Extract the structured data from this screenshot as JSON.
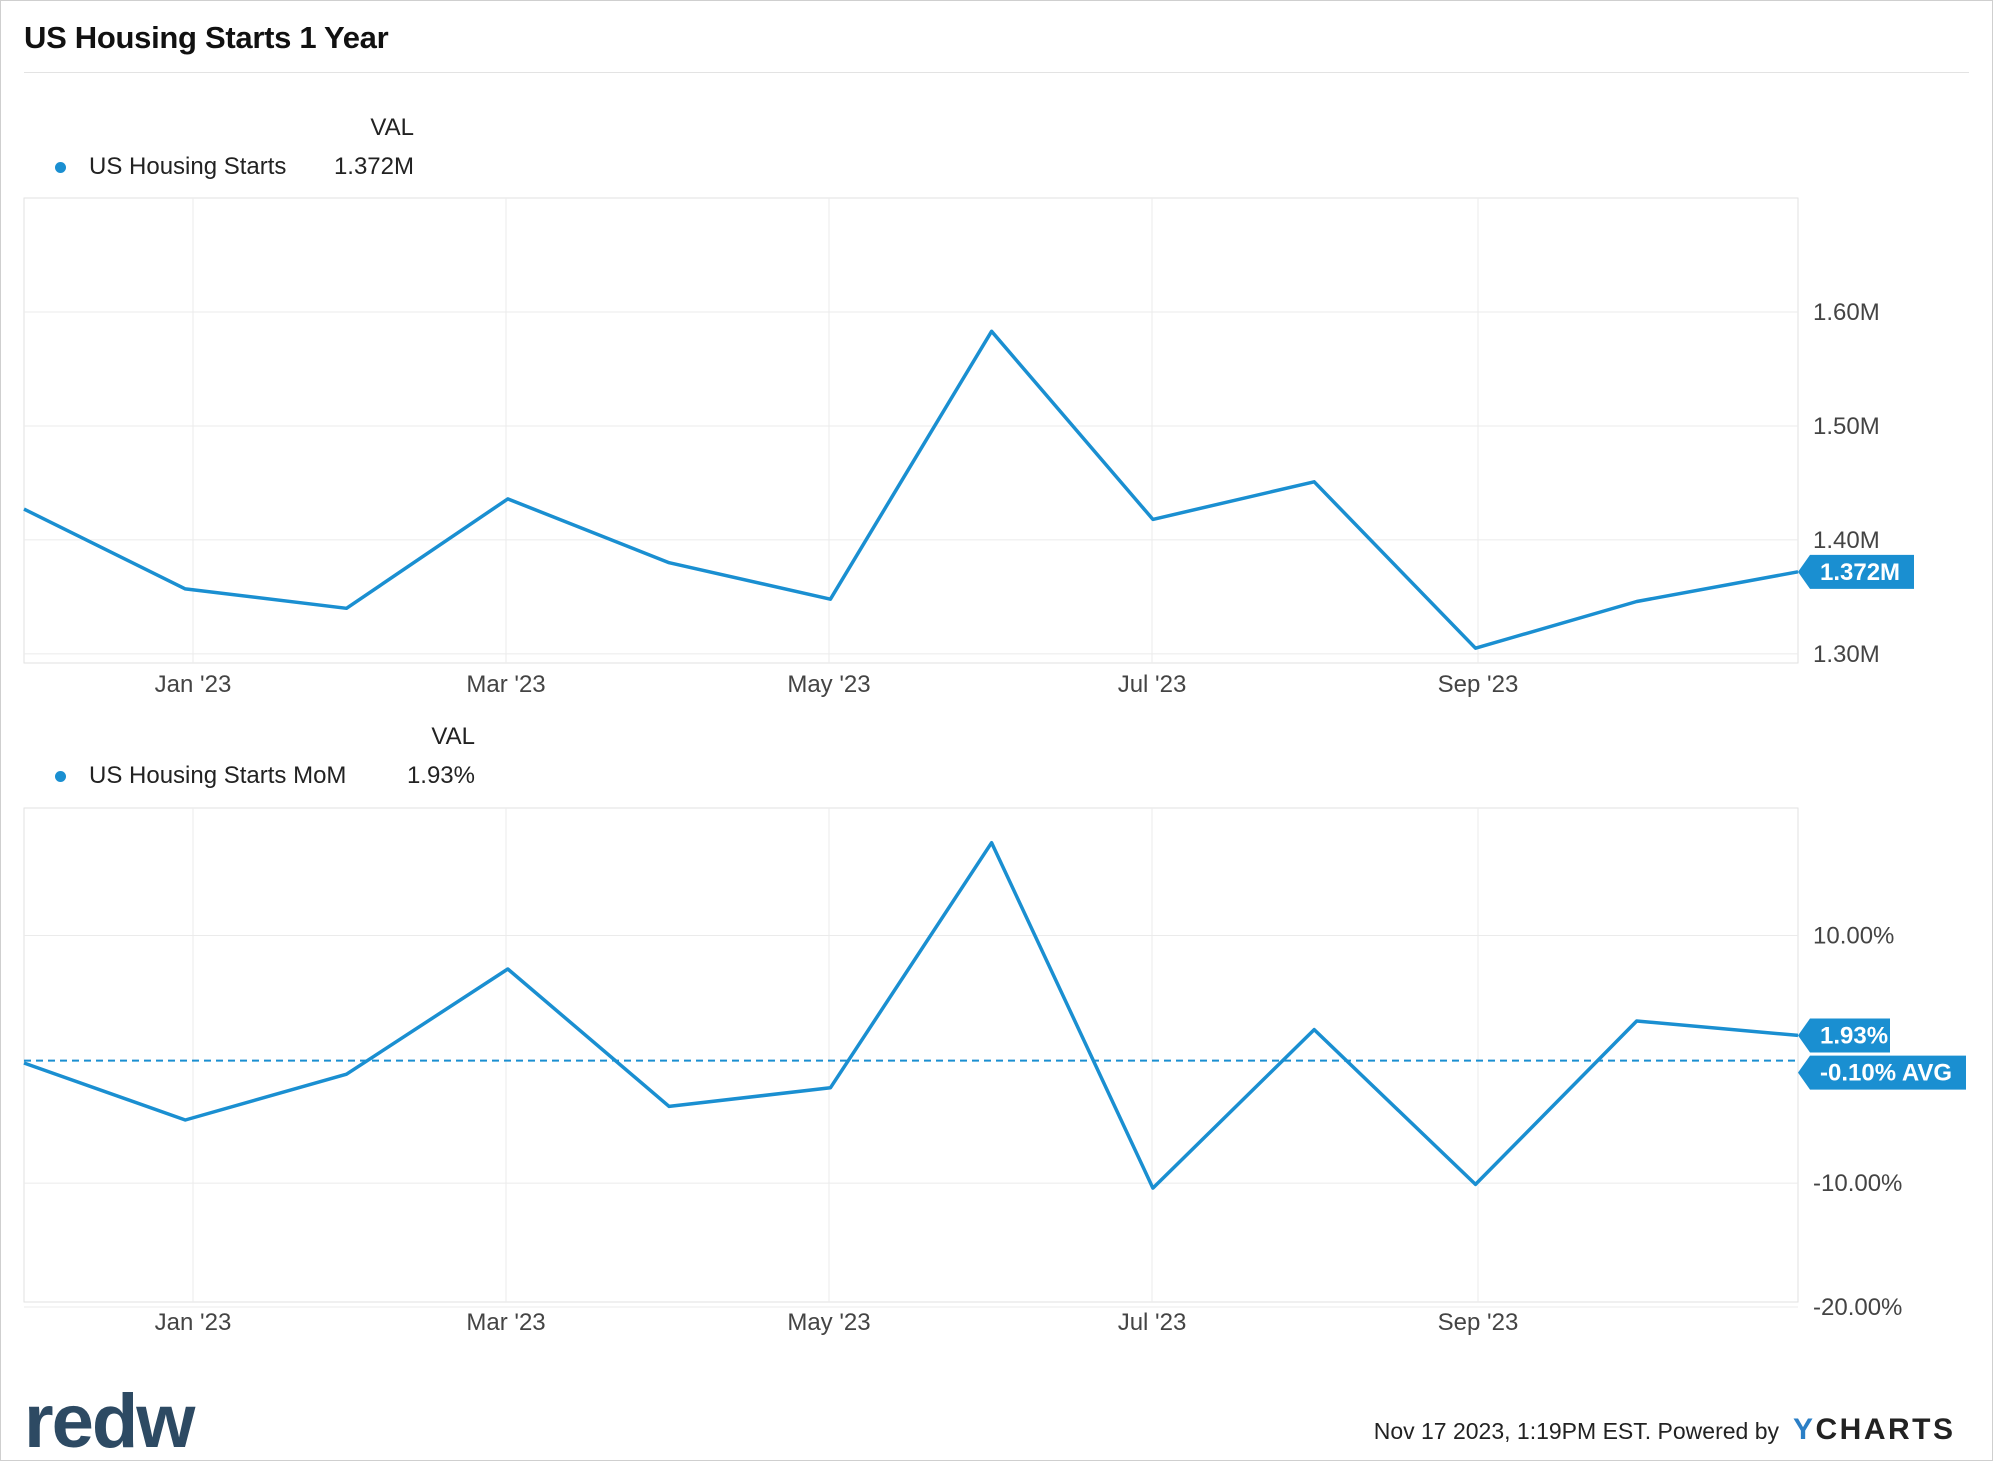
{
  "title": "US Housing Starts 1 Year",
  "accent_color": "#1a8fd1",
  "footer": {
    "timestamp": "Nov 17 2023, 1:19PM EST. Powered by",
    "ycharts_y": "Y",
    "ycharts_rest": "CHARTS"
  },
  "brand": "redw",
  "panel1": {
    "legend_header": "VAL",
    "series_name": "US Housing Starts",
    "series_value": "1.372M",
    "last_label": "1.372M"
  },
  "panel2": {
    "legend_header": "VAL",
    "series_name": "US Housing Starts MoM",
    "series_value": "1.93%",
    "last_label": "1.93%",
    "avg_label": "-0.10% AVG"
  },
  "chart_data": [
    {
      "type": "line",
      "title": "US Housing Starts 1 Year",
      "xlabel": "",
      "ylabel": "",
      "x": [
        "2022-11-01",
        "2022-12-01",
        "2023-01-01",
        "2023-02-01",
        "2023-03-01",
        "2023-04-01",
        "2023-05-01",
        "2023-06-01",
        "2023-07-01",
        "2023-08-01",
        "2023-09-01",
        "2023-10-01"
      ],
      "x_ticks": [
        "Jan '23",
        "Mar '23",
        "May '23",
        "Jul '23",
        "Sep '23"
      ],
      "series": [
        {
          "name": "US Housing Starts",
          "values": [
            1.427,
            1.357,
            1.34,
            1.436,
            1.38,
            1.348,
            1.583,
            1.418,
            1.451,
            1.305,
            1.346,
            1.372
          ]
        }
      ],
      "y_ticks": [
        "1.30M",
        "1.40M",
        "1.50M",
        "1.60M"
      ],
      "y_tick_values": [
        1.3,
        1.4,
        1.5,
        1.6
      ],
      "ylim": [
        1.292,
        1.7
      ],
      "grid": true,
      "legend": "top-left"
    },
    {
      "type": "line",
      "title": "",
      "xlabel": "",
      "ylabel": "",
      "x": [
        "2022-11-01",
        "2022-12-01",
        "2023-01-01",
        "2023-02-01",
        "2023-03-01",
        "2023-04-01",
        "2023-05-01",
        "2023-06-01",
        "2023-07-01",
        "2023-08-01",
        "2023-09-01",
        "2023-10-01"
      ],
      "x_ticks": [
        "Jan '23",
        "Mar '23",
        "May '23",
        "Jul '23",
        "Sep '23"
      ],
      "series": [
        {
          "name": "US Housing Starts MoM",
          "values": [
            -0.3,
            -4.9,
            -1.2,
            7.3,
            -3.8,
            -2.3,
            17.5,
            -10.4,
            2.4,
            -10.1,
            3.1,
            1.93
          ]
        }
      ],
      "average": -0.1,
      "y_ticks": [
        "-20.00%",
        "-10.00%",
        "10.00%"
      ],
      "y_tick_values": [
        -20,
        -10,
        10
      ],
      "ylim": [
        -19.6,
        20.3
      ],
      "grid": true,
      "legend": "top-left"
    }
  ]
}
